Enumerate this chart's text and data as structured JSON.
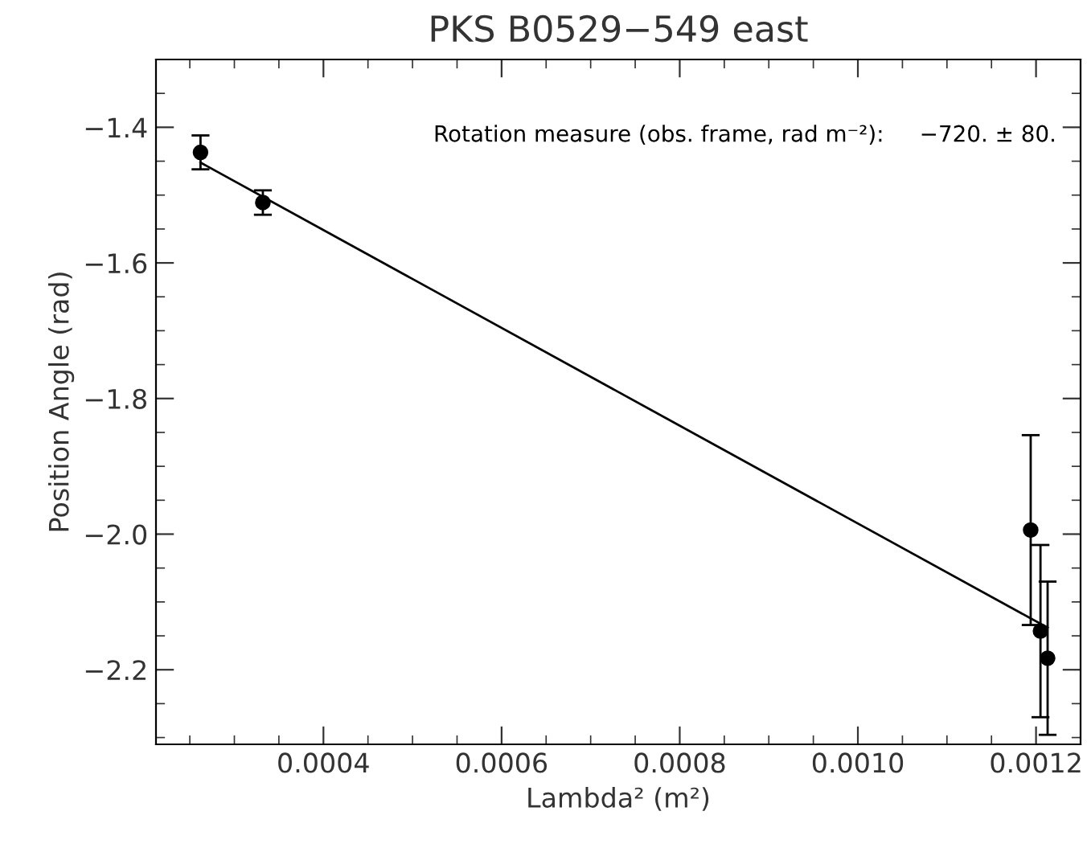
{
  "chart_data": {
    "type": "scatter",
    "title": "PKS B0529−549 east",
    "xlabel": "Lambda² (m²)",
    "ylabel": "Position Angle (rad)",
    "annotations": [
      "Rotation measure (obs. frame, rad m⁻²):     −720. ± 80."
    ],
    "series": [
      {
        "color": "#000000",
        "marker": "circle",
        "x": [
          0.000262,
          0.000332,
          0.001194,
          0.001205,
          0.001213
        ],
        "values": [
          -1.437,
          -1.511,
          -1.994,
          -2.143,
          -2.183
        ],
        "errors": [
          0.025,
          0.018,
          0.14,
          0.127,
          0.113
        ]
      },
      {
        "type": "line",
        "color": "#000000",
        "line_style": "solid",
        "x": [
          0.000262,
          0.001213
        ],
        "values": [
          -1.452,
          -2.138
        ]
      }
    ],
    "xlim": [
      0.000212,
      0.00125
    ],
    "ylim": [
      -2.31,
      -1.3
    ],
    "xticks": [
      {
        "value": 0.0004,
        "label": "0.0004"
      },
      {
        "value": 0.0006,
        "label": "0.0006"
      },
      {
        "value": 0.0008,
        "label": "0.0008"
      },
      {
        "value": 0.001,
        "label": "0.0010"
      },
      {
        "value": 0.0012,
        "label": "0.0012"
      }
    ],
    "yticks": [
      {
        "value": -2.2,
        "label": "−2.2"
      },
      {
        "value": -2.0,
        "label": "−2.0"
      },
      {
        "value": -1.8,
        "label": "−1.8"
      },
      {
        "value": -1.6,
        "label": "−1.6"
      },
      {
        "value": -1.4,
        "label": "−1.4"
      }
    ],
    "grid": false,
    "legend": false
  }
}
